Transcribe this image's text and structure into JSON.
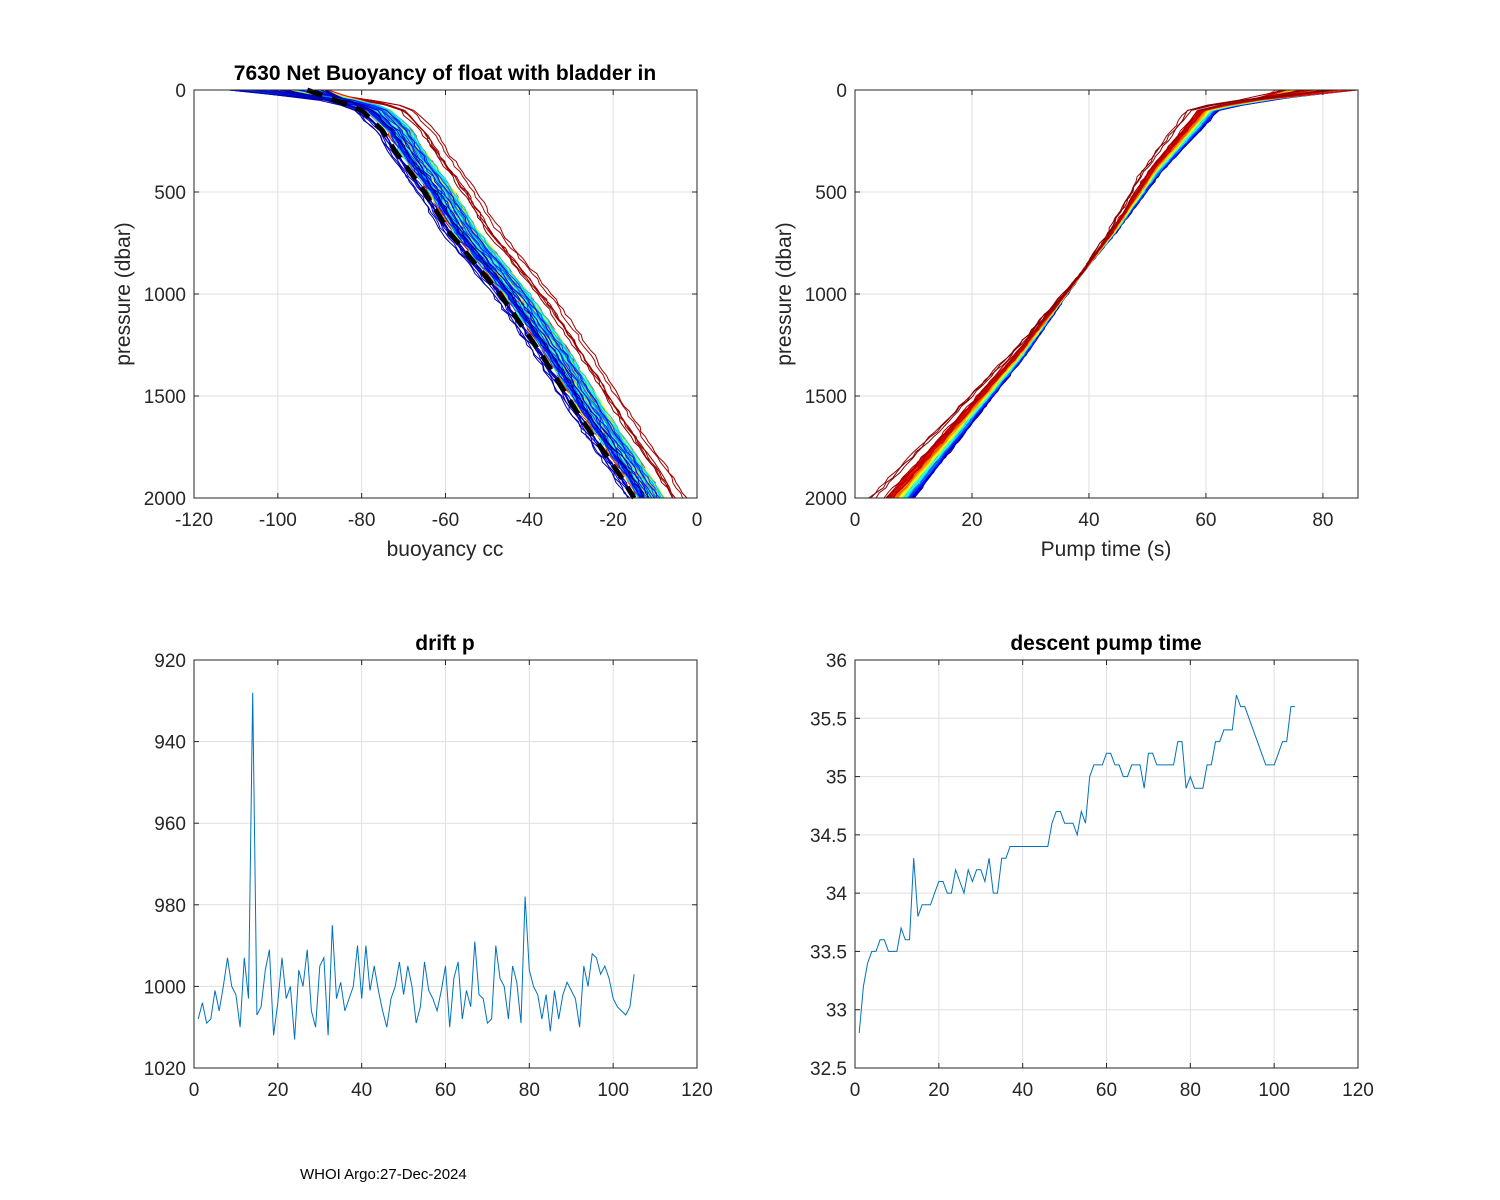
{
  "footer": "WHOI Argo:27-Dec-2024",
  "charts": {
    "tl_title": "7630 Net Buoyancy of float with bladder in",
    "tl_xlabel": "buoyancy cc",
    "tl_ylabel": "pressure (dbar)",
    "tr_xlabel": "Pump time (s)",
    "tr_ylabel": "pressure (dbar)",
    "bl_title": "drift p",
    "br_title": "descent pump time"
  },
  "colors": {
    "series": "#0072BD",
    "grid": "#dfdfdf",
    "axis": "#262626",
    "mean": "#000000"
  },
  "chart_data": [
    {
      "type": "line",
      "title": "7630 Net Buoyancy of float with bladder in",
      "xlabel": "buoyancy cc",
      "ylabel": "pressure (dbar)",
      "xlim": [
        -120,
        0
      ],
      "ylim": [
        0,
        2000
      ],
      "y_reversed": true,
      "xticks": [
        "-120",
        "-100",
        "-80",
        "-60",
        "-40",
        "-20",
        "0"
      ],
      "yticks": [
        "0",
        "500",
        "1000",
        "1500",
        "2000"
      ],
      "profile_count": 105,
      "mean_profile": {
        "pressure": [
          0,
          60,
          100,
          200,
          300,
          500,
          700,
          1000,
          1300,
          1600,
          1900,
          2000
        ],
        "buoyancy": [
          -93,
          -85,
          -80,
          -75,
          -72,
          -65,
          -59,
          -47,
          -37,
          -28,
          -18,
          -15
        ]
      }
    },
    {
      "type": "line",
      "title": "",
      "xlabel": "Pump time (s)",
      "ylabel": "pressure (dbar)",
      "xlim": [
        0,
        86
      ],
      "ylim": [
        0,
        2000
      ],
      "y_reversed": true,
      "xticks": [
        "0",
        "20",
        "40",
        "60",
        "80"
      ],
      "yticks": [
        "0",
        "500",
        "1000",
        "1500",
        "2000"
      ],
      "profile_count": 105,
      "mean_profile": {
        "pressure": [
          0,
          40,
          60,
          100,
          200,
          400,
          700,
          1000,
          1300,
          1600,
          1900,
          2000
        ],
        "pump_time": [
          78,
          72,
          66,
          60,
          57,
          51,
          44,
          36,
          28,
          19,
          10,
          7
        ]
      }
    },
    {
      "type": "line",
      "title": "drift p",
      "xlabel": "",
      "ylabel": "",
      "xlim": [
        0,
        120
      ],
      "ylim": [
        920,
        1020
      ],
      "y_reversed": true,
      "xticks": [
        "0",
        "20",
        "40",
        "60",
        "80",
        "100",
        "120"
      ],
      "yticks": [
        "920",
        "940",
        "960",
        "980",
        "1000",
        "1020"
      ],
      "x": [
        1,
        2,
        3,
        4,
        5,
        6,
        7,
        8,
        9,
        10,
        11,
        12,
        13,
        14,
        15,
        16,
        17,
        18,
        19,
        20,
        21,
        22,
        23,
        24,
        25,
        26,
        27,
        28,
        29,
        30,
        31,
        32,
        33,
        34,
        35,
        36,
        37,
        38,
        39,
        40,
        41,
        42,
        43,
        44,
        45,
        46,
        47,
        48,
        49,
        50,
        51,
        52,
        53,
        54,
        55,
        56,
        57,
        58,
        59,
        60,
        61,
        62,
        63,
        64,
        65,
        66,
        67,
        68,
        69,
        70,
        71,
        72,
        73,
        74,
        75,
        76,
        77,
        78,
        79,
        80,
        81,
        82,
        83,
        84,
        85,
        86,
        87,
        88,
        89,
        90,
        91,
        92,
        93,
        94,
        95,
        96,
        97,
        98,
        99,
        100,
        101,
        102,
        103,
        104,
        105
      ],
      "values": [
        1008,
        1004,
        1009,
        1008,
        1001,
        1006,
        1000,
        993,
        1000,
        1002,
        1010,
        993,
        1003,
        928,
        1007,
        1005,
        996,
        991,
        1012,
        1004,
        993,
        1003,
        1000,
        1013,
        996,
        1000,
        991,
        1006,
        1010,
        995,
        993,
        1012,
        985,
        1003,
        999,
        1006,
        1003,
        1000,
        990,
        1003,
        990,
        1001,
        995,
        1001,
        1006,
        1010,
        1003,
        1000,
        994,
        1002,
        995,
        1000,
        1009,
        1005,
        994,
        1001,
        1003,
        1006,
        1001,
        995,
        1010,
        998,
        994,
        1008,
        1001,
        1005,
        989,
        1002,
        1003,
        1009,
        1008,
        990,
        998,
        1000,
        1008,
        995,
        999,
        1009,
        978,
        996,
        1000,
        1002,
        1008,
        1002,
        1011,
        1001,
        1008,
        1002,
        999,
        1001,
        1003,
        1010,
        995,
        1000,
        992,
        993,
        997,
        995,
        998,
        1003,
        1005,
        1006,
        1007,
        1005,
        997
      ]
    },
    {
      "type": "line",
      "title": "descent pump time",
      "xlabel": "",
      "ylabel": "",
      "xlim": [
        0,
        120
      ],
      "ylim": [
        32.5,
        36
      ],
      "xticks": [
        "0",
        "20",
        "40",
        "60",
        "80",
        "100",
        "120"
      ],
      "yticks": [
        "32.5",
        "33",
        "33.5",
        "34",
        "34.5",
        "35",
        "35.5",
        "36"
      ],
      "x": [
        1,
        2,
        3,
        4,
        5,
        6,
        7,
        8,
        9,
        10,
        11,
        12,
        13,
        14,
        15,
        16,
        17,
        18,
        19,
        20,
        21,
        22,
        23,
        24,
        25,
        26,
        27,
        28,
        29,
        30,
        31,
        32,
        33,
        34,
        35,
        36,
        37,
        38,
        39,
        40,
        41,
        42,
        43,
        44,
        45,
        46,
        47,
        48,
        49,
        50,
        51,
        52,
        53,
        54,
        55,
        56,
        57,
        58,
        59,
        60,
        61,
        62,
        63,
        64,
        65,
        66,
        67,
        68,
        69,
        70,
        71,
        72,
        73,
        74,
        75,
        76,
        77,
        78,
        79,
        80,
        81,
        82,
        83,
        84,
        85,
        86,
        87,
        88,
        89,
        90,
        91,
        92,
        93,
        94,
        95,
        96,
        97,
        98,
        99,
        100,
        101,
        102,
        103,
        104,
        105
      ],
      "values": [
        32.8,
        33.2,
        33.4,
        33.5,
        33.5,
        33.6,
        33.6,
        33.5,
        33.5,
        33.5,
        33.7,
        33.6,
        33.6,
        34.3,
        33.8,
        33.9,
        33.9,
        33.9,
        34.0,
        34.1,
        34.1,
        34.0,
        34.0,
        34.2,
        34.1,
        34.0,
        34.2,
        34.1,
        34.2,
        34.2,
        34.1,
        34.3,
        34.0,
        34.0,
        34.3,
        34.3,
        34.4,
        34.4,
        34.4,
        34.4,
        34.4,
        34.4,
        34.4,
        34.4,
        34.4,
        34.4,
        34.6,
        34.7,
        34.7,
        34.6,
        34.6,
        34.6,
        34.5,
        34.7,
        34.6,
        35.0,
        35.1,
        35.1,
        35.1,
        35.2,
        35.2,
        35.1,
        35.1,
        35.0,
        35.0,
        35.1,
        35.1,
        35.1,
        34.9,
        35.2,
        35.2,
        35.1,
        35.1,
        35.1,
        35.1,
        35.1,
        35.3,
        35.3,
        34.9,
        35.0,
        34.9,
        34.9,
        34.9,
        35.1,
        35.1,
        35.3,
        35.3,
        35.4,
        35.4,
        35.4,
        35.7,
        35.6,
        35.6,
        35.5,
        35.4,
        35.3,
        35.2,
        35.1,
        35.1,
        35.1,
        35.2,
        35.3,
        35.3,
        35.6,
        35.6
      ]
    }
  ]
}
